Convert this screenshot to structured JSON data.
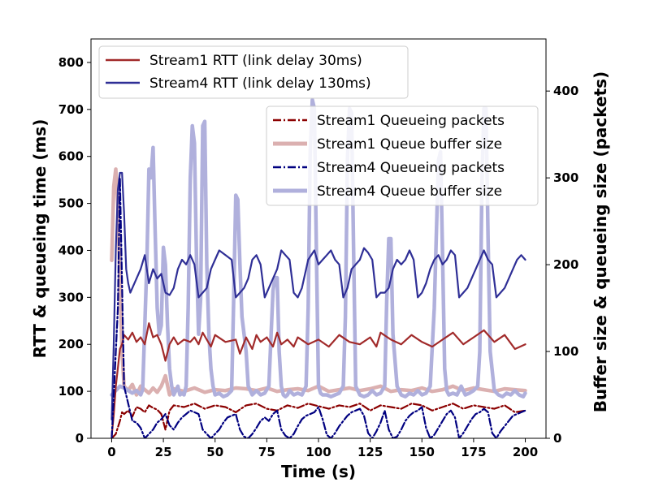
{
  "chart_data": {
    "type": "line",
    "xlabel": "Time (s)",
    "ylabel_left": "RTT & queueing time (ms)",
    "ylabel_right": "Buffer size & queueing size (packets)",
    "xlim": [
      -10,
      210
    ],
    "ylim_left": [
      0,
      850
    ],
    "ylim_right": [
      0,
      460
    ],
    "x_ticks": [
      0,
      25,
      50,
      75,
      100,
      125,
      150,
      175,
      200
    ],
    "y_left_ticks": [
      0,
      100,
      200,
      300,
      400,
      500,
      600,
      700,
      800
    ],
    "y_right_ticks": [
      0,
      100,
      200,
      300,
      400
    ],
    "grid": false,
    "legend_left": {
      "placement": "top-left",
      "entries": [
        "Stream1 RTT (link delay 30ms)",
        "Stream4 RTT (link delay 130ms)"
      ]
    },
    "legend_right": {
      "placement": "upper-right",
      "entries": [
        "Stream1 Queueing packets",
        "Stream1 Queue buffer size",
        "Stream4 Queueing packets",
        "Stream4 Queue buffer size"
      ]
    },
    "series": [
      {
        "name": "Stream1 RTT (link delay 30ms)",
        "axis": "left",
        "color": "#a12a2a",
        "style": "solid",
        "x": [
          0,
          1,
          2,
          3,
          4,
          5,
          6,
          8,
          10,
          12,
          14,
          16,
          18,
          20,
          22,
          24,
          26,
          28,
          30,
          32,
          35,
          38,
          40,
          42,
          44,
          46,
          48,
          50,
          55,
          60,
          62,
          65,
          68,
          70,
          72,
          75,
          78,
          80,
          82,
          85,
          88,
          90,
          95,
          100,
          105,
          110,
          115,
          120,
          125,
          128,
          130,
          135,
          140,
          145,
          150,
          155,
          160,
          165,
          170,
          175,
          180,
          185,
          190,
          195,
          200
        ],
        "y": [
          5,
          50,
          110,
          150,
          190,
          200,
          220,
          210,
          225,
          205,
          215,
          200,
          245,
          215,
          220,
          200,
          165,
          200,
          215,
          200,
          210,
          205,
          215,
          200,
          225,
          210,
          195,
          220,
          205,
          210,
          180,
          215,
          190,
          220,
          205,
          215,
          195,
          225,
          200,
          210,
          195,
          215,
          200,
          210,
          195,
          220,
          205,
          200,
          215,
          195,
          225,
          210,
          200,
          220,
          205,
          195,
          210,
          225,
          200,
          215,
          230,
          205,
          220,
          190,
          200
        ]
      },
      {
        "name": "Stream4 RTT (link delay 130ms)",
        "axis": "left",
        "color": "#2f2f96",
        "style": "solid",
        "x": [
          0,
          1,
          2,
          3,
          4,
          5,
          6,
          7,
          8,
          9,
          10,
          12,
          14,
          16,
          18,
          20,
          22,
          24,
          26,
          28,
          30,
          32,
          34,
          36,
          38,
          40,
          42,
          44,
          46,
          48,
          50,
          52,
          55,
          58,
          60,
          62,
          64,
          66,
          68,
          70,
          72,
          74,
          76,
          78,
          80,
          82,
          84,
          86,
          88,
          90,
          92,
          95,
          98,
          100,
          102,
          104,
          106,
          108,
          110,
          112,
          114,
          116,
          118,
          120,
          122,
          124,
          126,
          128,
          130,
          132,
          134,
          136,
          138,
          140,
          142,
          144,
          146,
          148,
          150,
          152,
          154,
          156,
          158,
          160,
          162,
          164,
          166,
          168,
          170,
          172,
          174,
          176,
          178,
          180,
          182,
          184,
          186,
          188,
          190,
          192,
          194,
          196,
          198,
          200
        ],
        "y": [
          40,
          200,
          400,
          530,
          565,
          565,
          480,
          360,
          330,
          310,
          320,
          340,
          360,
          390,
          330,
          360,
          340,
          350,
          310,
          305,
          320,
          360,
          380,
          370,
          390,
          370,
          300,
          310,
          320,
          360,
          380,
          400,
          390,
          380,
          300,
          310,
          320,
          340,
          380,
          390,
          370,
          300,
          320,
          340,
          360,
          400,
          390,
          380,
          310,
          300,
          320,
          380,
          400,
          370,
          380,
          390,
          400,
          380,
          370,
          300,
          320,
          360,
          370,
          380,
          405,
          395,
          380,
          300,
          310,
          310,
          320,
          360,
          380,
          370,
          380,
          400,
          380,
          300,
          310,
          330,
          360,
          380,
          390,
          370,
          380,
          400,
          390,
          300,
          310,
          320,
          340,
          360,
          380,
          400,
          380,
          370,
          300,
          310,
          320,
          340,
          360,
          380,
          390,
          380
        ]
      },
      {
        "name": "Stream1 Queue buffer size",
        "axis": "right",
        "color": "#dbb0b0",
        "style": "thick",
        "x": [
          0,
          1,
          2,
          3,
          4,
          5,
          6,
          8,
          10,
          12,
          14,
          16,
          18,
          20,
          22,
          24,
          26,
          28,
          30,
          35,
          40,
          45,
          50,
          55,
          60,
          65,
          70,
          75,
          80,
          85,
          90,
          95,
          100,
          105,
          110,
          115,
          120,
          125,
          130,
          135,
          140,
          145,
          150,
          155,
          160,
          165,
          170,
          175,
          180,
          185,
          190,
          195,
          200
        ],
        "y": [
          205,
          290,
          310,
          270,
          180,
          100,
          60,
          55,
          62,
          50,
          60,
          56,
          52,
          58,
          53,
          60,
          72,
          50,
          57,
          54,
          58,
          53,
          56,
          55,
          58,
          57,
          55,
          58,
          54,
          56,
          57,
          55,
          60,
          54,
          56,
          58,
          55,
          57,
          60,
          54,
          56,
          55,
          58,
          54,
          56,
          60,
          55,
          58,
          56,
          54,
          57,
          56,
          55
        ]
      },
      {
        "name": "Stream1 Queueing packets",
        "axis": "right",
        "color": "#8b0000",
        "style": "dashdot",
        "x": [
          0,
          2,
          4,
          5,
          6,
          8,
          10,
          12,
          14,
          16,
          18,
          20,
          22,
          24,
          26,
          28,
          30,
          35,
          40,
          45,
          50,
          55,
          60,
          65,
          70,
          75,
          80,
          85,
          90,
          95,
          100,
          105,
          110,
          115,
          120,
          125,
          130,
          135,
          140,
          145,
          150,
          155,
          160,
          165,
          170,
          175,
          180,
          185,
          190,
          195,
          200
        ],
        "y": [
          0,
          5,
          20,
          30,
          28,
          32,
          25,
          36,
          34,
          30,
          38,
          35,
          33,
          28,
          10,
          32,
          38,
          36,
          40,
          34,
          38,
          36,
          30,
          38,
          40,
          34,
          32,
          38,
          35,
          40,
          37,
          34,
          38,
          36,
          40,
          32,
          38,
          36,
          34,
          40,
          38,
          32,
          36,
          40,
          34,
          38,
          36,
          34,
          38,
          30,
          32
        ]
      },
      {
        "name": "Stream4 Queue buffer size",
        "axis": "right",
        "color": "#b0b0dc",
        "style": "thick",
        "x": [
          0,
          4,
          6,
          8,
          10,
          12,
          14,
          15,
          17,
          18,
          19,
          20,
          21,
          22,
          23,
          24,
          25,
          26,
          27,
          28,
          29,
          30,
          31,
          32,
          33,
          34,
          35,
          36,
          37,
          38,
          39,
          40,
          41,
          42,
          43,
          44,
          45,
          46,
          47,
          48,
          49,
          50,
          52,
          54,
          56,
          58,
          59,
          60,
          61,
          62,
          63,
          64,
          65,
          66,
          68,
          70,
          72,
          74,
          76,
          78,
          79,
          80,
          81,
          82,
          83,
          84,
          85,
          86,
          88,
          90,
          92,
          94,
          95,
          96,
          97,
          98,
          99,
          100,
          101,
          102,
          104,
          106,
          108,
          110,
          112,
          113,
          114,
          115,
          116,
          117,
          118,
          120,
          122,
          124,
          126,
          128,
          130,
          132,
          133,
          134,
          135,
          136,
          138,
          140,
          142,
          144,
          146,
          148,
          150,
          152,
          154,
          156,
          158,
          159,
          160,
          161,
          162,
          163,
          165,
          167,
          169,
          171,
          173,
          175,
          177,
          178,
          179,
          180,
          181,
          182,
          183,
          185,
          187,
          189,
          191,
          193,
          195,
          197,
          199,
          200
        ],
        "y": [
          50,
          60,
          58,
          55,
          52,
          55,
          50,
          56,
          200,
          310,
          300,
          335,
          240,
          150,
          120,
          130,
          220,
          200,
          130,
          80,
          60,
          50,
          55,
          60,
          50,
          52,
          50,
          60,
          150,
          300,
          360,
          340,
          210,
          120,
          160,
          360,
          365,
          200,
          120,
          80,
          60,
          50,
          52,
          48,
          50,
          55,
          160,
          280,
          275,
          200,
          140,
          120,
          100,
          60,
          50,
          55,
          50,
          52,
          60,
          170,
          185,
          185,
          100,
          60,
          50,
          48,
          50,
          55,
          50,
          52,
          50,
          60,
          150,
          330,
          390,
          380,
          210,
          60,
          52,
          50,
          50,
          48,
          50,
          52,
          60,
          140,
          320,
          380,
          375,
          210,
          60,
          50,
          48,
          50,
          55,
          50,
          52,
          60,
          160,
          230,
          230,
          120,
          60,
          50,
          48,
          52,
          50,
          55,
          50,
          52,
          60,
          150,
          320,
          330,
          210,
          80,
          55,
          50,
          52,
          50,
          60,
          50,
          52,
          55,
          60,
          100,
          290,
          380,
          380,
          230,
          100,
          55,
          50,
          48,
          52,
          50,
          55,
          50,
          48,
          52
        ]
      },
      {
        "name": "Stream4 Queueing packets",
        "axis": "right",
        "color": "#000080",
        "style": "dashdot",
        "x": [
          0,
          3,
          4,
          6,
          8,
          10,
          12,
          14,
          16,
          18,
          20,
          22,
          24,
          26,
          28,
          30,
          32,
          34,
          36,
          38,
          40,
          42,
          44,
          46,
          48,
          50,
          52,
          54,
          56,
          58,
          60,
          62,
          64,
          66,
          68,
          70,
          72,
          74,
          76,
          78,
          80,
          82,
          84,
          86,
          88,
          90,
          92,
          94,
          96,
          98,
          100,
          102,
          104,
          106,
          108,
          110,
          112,
          114,
          116,
          118,
          120,
          122,
          124,
          126,
          128,
          130,
          132,
          134,
          136,
          138,
          140,
          142,
          144,
          146,
          148,
          150,
          152,
          154,
          156,
          158,
          160,
          162,
          164,
          166,
          168,
          170,
          172,
          174,
          176,
          178,
          180,
          182,
          184,
          186,
          188,
          190,
          192,
          194,
          196,
          198,
          200
        ],
        "y": [
          0,
          150,
          300,
          60,
          40,
          20,
          18,
          12,
          0,
          5,
          10,
          18,
          22,
          28,
          15,
          10,
          18,
          24,
          28,
          32,
          30,
          28,
          10,
          5,
          0,
          5,
          10,
          18,
          24,
          26,
          28,
          10,
          2,
          0,
          5,
          12,
          20,
          24,
          20,
          28,
          32,
          10,
          3,
          0,
          5,
          14,
          22,
          26,
          28,
          30,
          36,
          22,
          4,
          0,
          6,
          14,
          20,
          26,
          30,
          32,
          34,
          26,
          6,
          0,
          8,
          18,
          32,
          10,
          0,
          2,
          10,
          20,
          26,
          30,
          32,
          36,
          12,
          0,
          4,
          12,
          20,
          28,
          32,
          24,
          0,
          6,
          14,
          22,
          28,
          30,
          34,
          30,
          6,
          0,
          8,
          14,
          20,
          26,
          28,
          30,
          32
        ]
      }
    ]
  }
}
